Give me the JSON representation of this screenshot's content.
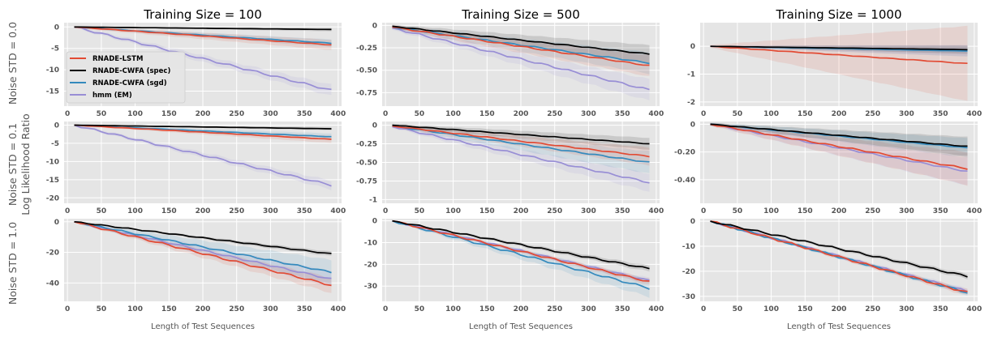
{
  "figure": {
    "column_titles": [
      "Training Size = 100",
      "Training Size = 500",
      "Training Size = 1000"
    ],
    "row_labels": [
      "Noise STD = 0.0",
      "Noise STD = 0.1",
      "Noise STD = 1.0"
    ],
    "ylabel": "Log Likelihood Ratio",
    "xlabel": "Length of Test Sequences"
  },
  "colors": {
    "RNADE-LSTM": "#e24a33",
    "RNADE-CWFA (spec)": "#000000",
    "RNADE-CWFA (sgd)": "#348abd",
    "hmm (EM)": "#988ed5",
    "axes_bg": "#e5e5e5",
    "grid": "#ffffff"
  },
  "legend": {
    "location": "lower-left of top-left panel",
    "entries": [
      "RNADE-LSTM",
      "RNADE-CWFA (spec)",
      "RNADE-CWFA (sgd)",
      "hmm (EM)"
    ]
  },
  "chart_data": [
    {
      "type": "line",
      "title": "Training Size = 100",
      "row": "Noise STD = 0.0",
      "xlim": [
        -5,
        405
      ],
      "ylim": [
        -18.5,
        1
      ],
      "xticks": [
        0,
        50,
        100,
        150,
        200,
        250,
        300,
        350,
        400
      ],
      "yticks": [
        0,
        -5,
        -10,
        -15
      ],
      "series": [
        {
          "name": "RNADE-LSTM",
          "x": [
            10,
            390
          ],
          "y": [
            0,
            -4.2
          ],
          "band": [
            0.3,
            1.2
          ]
        },
        {
          "name": "RNADE-CWFA (spec)",
          "x": [
            10,
            390
          ],
          "y": [
            0,
            -0.6
          ],
          "band": [
            0.1,
            0.4
          ]
        },
        {
          "name": "RNADE-CWFA (sgd)",
          "x": [
            10,
            390
          ],
          "y": [
            0,
            -3.8
          ],
          "band": [
            0.2,
            0.9
          ]
        },
        {
          "name": "hmm (EM)",
          "x": [
            10,
            390
          ],
          "y": [
            0,
            -14.8
          ],
          "band": [
            0.3,
            1.3
          ]
        }
      ]
    },
    {
      "type": "line",
      "title": "Training Size = 500",
      "row": "Noise STD = 0.0",
      "xlim": [
        -5,
        405
      ],
      "ylim": [
        -0.9,
        0.03
      ],
      "xticks": [
        0,
        50,
        100,
        150,
        200,
        250,
        300,
        350,
        400
      ],
      "yticks": [
        0.0,
        -0.25,
        -0.5,
        -0.75
      ],
      "series": [
        {
          "name": "RNADE-LSTM",
          "x": [
            10,
            390
          ],
          "y": [
            -0.02,
            -0.45
          ],
          "band": [
            0.02,
            0.12
          ]
        },
        {
          "name": "RNADE-CWFA (spec)",
          "x": [
            10,
            390
          ],
          "y": [
            -0.01,
            -0.32
          ],
          "band": [
            0.02,
            0.1
          ]
        },
        {
          "name": "RNADE-CWFA (sgd)",
          "x": [
            10,
            390
          ],
          "y": [
            -0.02,
            -0.42
          ],
          "band": [
            0.02,
            0.12
          ]
        },
        {
          "name": "hmm (EM)",
          "x": [
            10,
            390
          ],
          "y": [
            -0.03,
            -0.72
          ],
          "band": [
            0.02,
            0.12
          ]
        }
      ]
    },
    {
      "type": "line",
      "title": "Training Size = 1000",
      "row": "Noise STD = 0.0",
      "xlim": [
        -5,
        405
      ],
      "ylim": [
        -2.15,
        0.85
      ],
      "xticks": [
        0,
        50,
        100,
        150,
        200,
        250,
        300,
        350,
        400
      ],
      "yticks": [
        0,
        -1,
        -2
      ],
      "series": [
        {
          "name": "RNADE-LSTM",
          "x": [
            10,
            390
          ],
          "y": [
            0,
            -0.62
          ],
          "band": [
            0.05,
            1.35
          ]
        },
        {
          "name": "RNADE-CWFA (spec)",
          "x": [
            10,
            390
          ],
          "y": [
            0,
            -0.12
          ],
          "band": [
            0.02,
            0.15
          ]
        },
        {
          "name": "RNADE-CWFA (sgd)",
          "x": [
            10,
            390
          ],
          "y": [
            0,
            -0.17
          ],
          "band": [
            0.02,
            0.2
          ]
        },
        {
          "name": "hmm (EM)",
          "x": [
            10,
            390
          ],
          "y": [
            0,
            -0.15
          ],
          "band": [
            0.02,
            0.2
          ]
        }
      ]
    },
    {
      "type": "line",
      "title": "",
      "row": "Noise STD = 0.1",
      "xlim": [
        -5,
        405
      ],
      "ylim": [
        -21.5,
        1
      ],
      "xticks": [
        0,
        50,
        100,
        150,
        200,
        250,
        300,
        350,
        400
      ],
      "yticks": [
        0,
        -5,
        -10,
        -15,
        -20
      ],
      "series": [
        {
          "name": "RNADE-LSTM",
          "x": [
            10,
            390
          ],
          "y": [
            0,
            -3.9
          ],
          "band": [
            0.2,
            1.0
          ]
        },
        {
          "name": "RNADE-CWFA (spec)",
          "x": [
            10,
            390
          ],
          "y": [
            0,
            -1.0
          ],
          "band": [
            0.1,
            0.4
          ]
        },
        {
          "name": "RNADE-CWFA (sgd)",
          "x": [
            10,
            390
          ],
          "y": [
            0,
            -3.2
          ],
          "band": [
            0.2,
            0.9
          ]
        },
        {
          "name": "hmm (EM)",
          "x": [
            10,
            390
          ],
          "y": [
            0,
            -16.5
          ],
          "band": [
            0.3,
            1.2
          ]
        }
      ]
    },
    {
      "type": "line",
      "title": "",
      "row": "Noise STD = 0.1",
      "xlim": [
        -5,
        405
      ],
      "ylim": [
        -1.05,
        0.05
      ],
      "xticks": [
        0,
        50,
        100,
        150,
        200,
        250,
        300,
        350,
        400
      ],
      "yticks": [
        0.0,
        -0.25,
        -0.5,
        -0.75,
        -1.0
      ],
      "series": [
        {
          "name": "RNADE-LSTM",
          "x": [
            10,
            390
          ],
          "y": [
            -0.01,
            -0.42
          ],
          "band": [
            0.02,
            0.12
          ]
        },
        {
          "name": "RNADE-CWFA (spec)",
          "x": [
            10,
            390
          ],
          "y": [
            0,
            -0.25
          ],
          "band": [
            0.02,
            0.08
          ]
        },
        {
          "name": "RNADE-CWFA (sgd)",
          "x": [
            10,
            390
          ],
          "y": [
            -0.01,
            -0.5
          ],
          "band": [
            0.02,
            0.15
          ]
        },
        {
          "name": "hmm (EM)",
          "x": [
            10,
            390
          ],
          "y": [
            -0.02,
            -0.77
          ],
          "band": [
            0.02,
            0.12
          ]
        }
      ]
    },
    {
      "type": "line",
      "title": "",
      "row": "Noise STD = 0.1",
      "xlim": [
        -5,
        405
      ],
      "ylim": [
        -0.57,
        0.02
      ],
      "xticks": [
        0,
        50,
        100,
        150,
        200,
        250,
        300,
        350,
        400
      ],
      "yticks": [
        0.0,
        -0.2,
        -0.4
      ],
      "series": [
        {
          "name": "RNADE-LSTM",
          "x": [
            10,
            390
          ],
          "y": [
            0,
            -0.32
          ],
          "band": [
            0.01,
            0.12
          ]
        },
        {
          "name": "RNADE-CWFA (spec)",
          "x": [
            10,
            390
          ],
          "y": [
            0,
            -0.16
          ],
          "band": [
            0.01,
            0.07
          ]
        },
        {
          "name": "RNADE-CWFA (sgd)",
          "x": [
            10,
            390
          ],
          "y": [
            0,
            -0.17
          ],
          "band": [
            0.01,
            0.07
          ]
        },
        {
          "name": "hmm (EM)",
          "x": [
            10,
            390
          ],
          "y": [
            0,
            -0.34
          ],
          "band": [
            0.01,
            0.1
          ]
        }
      ]
    },
    {
      "type": "line",
      "title": "",
      "row": "Noise STD = 1.0",
      "xlabel": "Length of Test Sequences",
      "xlim": [
        -5,
        405
      ],
      "ylim": [
        -52,
        2
      ],
      "xticks": [
        0,
        50,
        100,
        150,
        200,
        250,
        300,
        350,
        400
      ],
      "yticks": [
        0,
        -20,
        -40
      ],
      "series": [
        {
          "name": "RNADE-LSTM",
          "x": [
            10,
            390
          ],
          "y": [
            0,
            -41.5
          ],
          "band": [
            0.5,
            5
          ]
        },
        {
          "name": "RNADE-CWFA (spec)",
          "x": [
            10,
            390
          ],
          "y": [
            0,
            -21
          ],
          "band": [
            0.3,
            1.5
          ]
        },
        {
          "name": "RNADE-CWFA (sgd)",
          "x": [
            10,
            390
          ],
          "y": [
            0,
            -33
          ],
          "band": [
            0.5,
            8
          ]
        },
        {
          "name": "hmm (EM)",
          "x": [
            10,
            390
          ],
          "y": [
            0,
            -37.5
          ],
          "band": [
            0.5,
            5
          ]
        }
      ]
    },
    {
      "type": "line",
      "title": "",
      "row": "Noise STD = 1.0",
      "xlabel": "Length of Test Sequences",
      "xlim": [
        -5,
        405
      ],
      "ylim": [
        -37,
        1
      ],
      "xticks": [
        0,
        50,
        100,
        150,
        200,
        250,
        300,
        350,
        400
      ],
      "yticks": [
        0,
        -10,
        -20,
        -30
      ],
      "series": [
        {
          "name": "RNADE-LSTM",
          "x": [
            10,
            390
          ],
          "y": [
            0,
            -28
          ],
          "band": [
            0.3,
            1.3
          ]
        },
        {
          "name": "RNADE-CWFA (spec)",
          "x": [
            10,
            390
          ],
          "y": [
            0,
            -22
          ],
          "band": [
            0.3,
            1.3
          ]
        },
        {
          "name": "RNADE-CWFA (sgd)",
          "x": [
            10,
            390
          ],
          "y": [
            0,
            -31
          ],
          "band": [
            0.3,
            4
          ]
        },
        {
          "name": "hmm (EM)",
          "x": [
            10,
            390
          ],
          "y": [
            0,
            -27.5
          ],
          "band": [
            0.3,
            1.2
          ]
        }
      ]
    },
    {
      "type": "line",
      "title": "",
      "row": "Noise STD = 1.0",
      "xlabel": "Length of Test Sequences",
      "xlim": [
        -5,
        405
      ],
      "ylim": [
        -32,
        1
      ],
      "xticks": [
        0,
        50,
        100,
        150,
        200,
        250,
        300,
        350,
        400
      ],
      "yticks": [
        0,
        -10,
        -20,
        -30
      ],
      "series": [
        {
          "name": "RNADE-LSTM",
          "x": [
            10,
            390
          ],
          "y": [
            0,
            -28.5
          ],
          "band": [
            0.3,
            1.2
          ]
        },
        {
          "name": "RNADE-CWFA (spec)",
          "x": [
            10,
            390
          ],
          "y": [
            0,
            -22
          ],
          "band": [
            0.3,
            1.0
          ]
        },
        {
          "name": "RNADE-CWFA (sgd)",
          "x": [
            10,
            390
          ],
          "y": [
            0,
            -28.5
          ],
          "band": [
            0.3,
            1.0
          ]
        },
        {
          "name": "hmm (EM)",
          "x": [
            10,
            390
          ],
          "y": [
            0,
            -28
          ],
          "band": [
            0.3,
            1.0
          ]
        }
      ]
    }
  ]
}
